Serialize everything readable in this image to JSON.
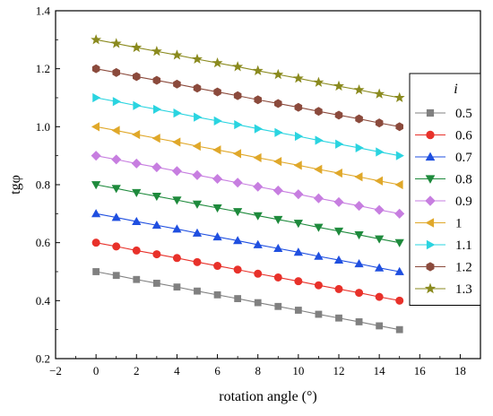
{
  "chart_data": {
    "type": "line",
    "xlabel": "rotation angle (°)",
    "ylabel": "tgφ",
    "xlim": [
      -2,
      19
    ],
    "ylim": [
      0.2,
      1.4
    ],
    "xticks": [
      -2,
      0,
      2,
      4,
      6,
      8,
      10,
      12,
      14,
      16,
      18
    ],
    "yticks": [
      0.2,
      0.4,
      0.6,
      0.8,
      1.0,
      1.2,
      1.4
    ],
    "xtick_labels": [
      "−2",
      "0",
      "2",
      "4",
      "6",
      "8",
      "10",
      "12",
      "14",
      "16",
      "18"
    ],
    "ytick_labels": [
      "0.2",
      "0.4",
      "0.6",
      "0.8",
      "1.0",
      "1.2",
      "1.4"
    ],
    "grid": false,
    "legend_title": "i",
    "legend_position": "right",
    "x": [
      0,
      1,
      2,
      3,
      4,
      5,
      6,
      7,
      8,
      9,
      10,
      11,
      12,
      13,
      14,
      15
    ],
    "series": [
      {
        "name": "0.5",
        "color": "#808080",
        "marker": "square",
        "values": [
          0.5,
          0.487,
          0.473,
          0.46,
          0.447,
          0.433,
          0.42,
          0.407,
          0.393,
          0.38,
          0.367,
          0.353,
          0.34,
          0.327,
          0.313,
          0.3
        ]
      },
      {
        "name": "0.6",
        "color": "#e8312a",
        "marker": "circle",
        "values": [
          0.6,
          0.587,
          0.573,
          0.56,
          0.547,
          0.533,
          0.52,
          0.507,
          0.493,
          0.48,
          0.467,
          0.453,
          0.44,
          0.427,
          0.413,
          0.4
        ]
      },
      {
        "name": "0.7",
        "color": "#1f4fe0",
        "marker": "triangle-up",
        "values": [
          0.7,
          0.687,
          0.673,
          0.66,
          0.647,
          0.633,
          0.62,
          0.607,
          0.593,
          0.58,
          0.567,
          0.553,
          0.54,
          0.527,
          0.513,
          0.5
        ]
      },
      {
        "name": "0.8",
        "color": "#1e8a3c",
        "marker": "triangle-down",
        "values": [
          0.8,
          0.787,
          0.773,
          0.76,
          0.747,
          0.733,
          0.72,
          0.707,
          0.693,
          0.68,
          0.667,
          0.653,
          0.64,
          0.627,
          0.613,
          0.6
        ]
      },
      {
        "name": "0.9",
        "color": "#c77ee0",
        "marker": "diamond",
        "values": [
          0.9,
          0.887,
          0.873,
          0.86,
          0.847,
          0.833,
          0.82,
          0.807,
          0.793,
          0.78,
          0.767,
          0.753,
          0.74,
          0.727,
          0.713,
          0.7
        ]
      },
      {
        "name": "1",
        "color": "#e0a82a",
        "marker": "triangle-left",
        "values": [
          1.0,
          0.987,
          0.973,
          0.96,
          0.947,
          0.933,
          0.92,
          0.907,
          0.893,
          0.88,
          0.867,
          0.853,
          0.84,
          0.827,
          0.813,
          0.8
        ]
      },
      {
        "name": "1.1",
        "color": "#2ad4e0",
        "marker": "triangle-right",
        "values": [
          1.1,
          1.087,
          1.073,
          1.06,
          1.047,
          1.033,
          1.02,
          1.007,
          0.993,
          0.98,
          0.967,
          0.953,
          0.94,
          0.927,
          0.913,
          0.9
        ]
      },
      {
        "name": "1.2",
        "color": "#8b4a3c",
        "marker": "hexagon",
        "values": [
          1.2,
          1.187,
          1.173,
          1.16,
          1.147,
          1.133,
          1.12,
          1.107,
          1.093,
          1.08,
          1.067,
          1.053,
          1.04,
          1.027,
          1.013,
          1.0
        ]
      },
      {
        "name": "1.3",
        "color": "#8a8a1e",
        "marker": "star",
        "values": [
          1.3,
          1.287,
          1.273,
          1.26,
          1.247,
          1.233,
          1.22,
          1.207,
          1.193,
          1.18,
          1.167,
          1.153,
          1.14,
          1.127,
          1.113,
          1.1
        ]
      }
    ]
  }
}
